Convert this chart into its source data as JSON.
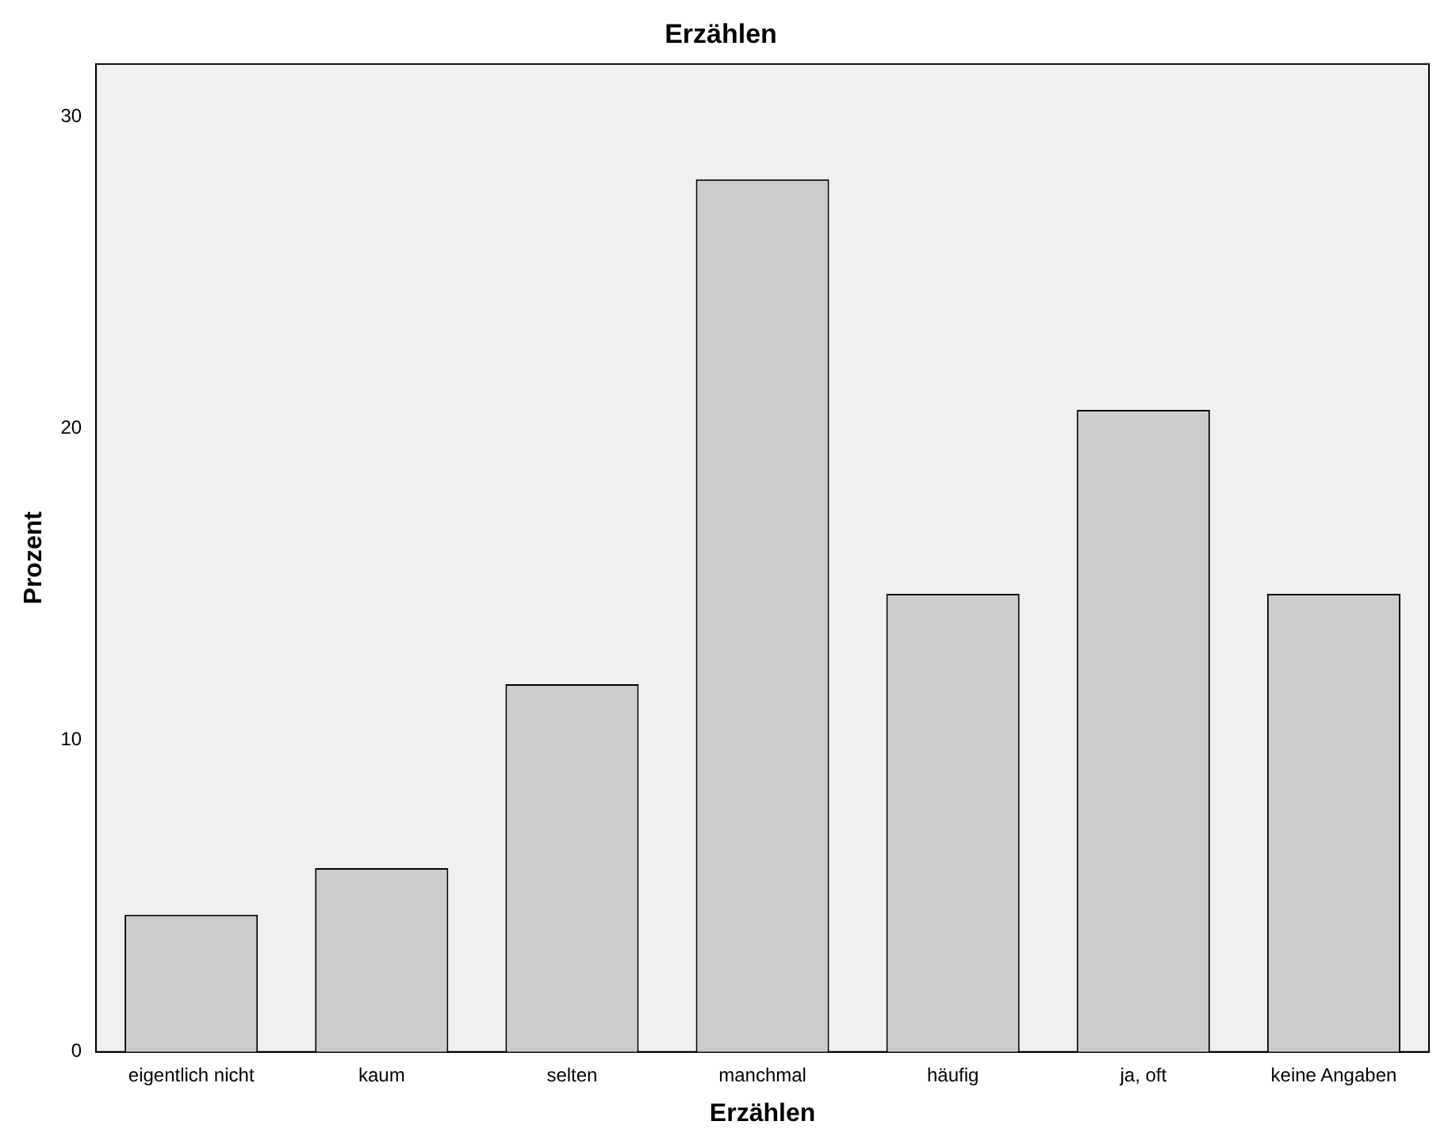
{
  "chart_data": {
    "type": "bar",
    "title": "Erzählen",
    "xlabel": "Erzählen",
    "ylabel": "Prozent",
    "categories": [
      "eigentlich nicht",
      "kaum",
      "selten",
      "manchmal",
      "häufig",
      "ja, oft",
      "keine Angaben"
    ],
    "values": [
      4.4,
      5.9,
      11.8,
      28.0,
      14.7,
      20.6,
      14.7
    ],
    "color": "#cccccc",
    "ylim": [
      0,
      31.7
    ],
    "yticks": [
      0,
      10,
      20,
      30
    ],
    "grid": false,
    "legend": false
  }
}
